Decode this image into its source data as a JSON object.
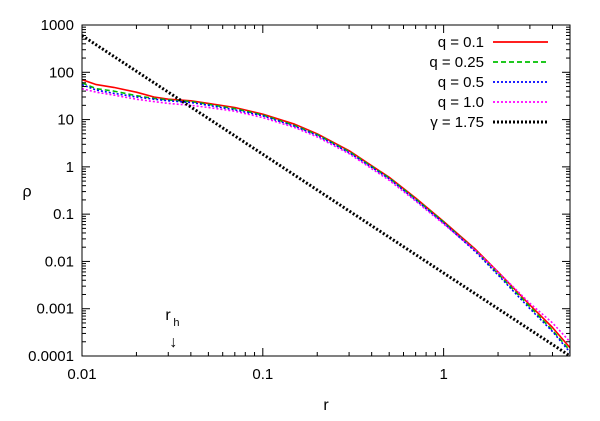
{
  "chart_data": {
    "type": "line",
    "xlabel": "r",
    "ylabel": "ρ",
    "xscale": "log",
    "yscale": "log",
    "xlim": [
      0.01,
      5
    ],
    "ylim": [
      0.0001,
      1000
    ],
    "xticks": [
      {
        "value": 0.01,
        "label": "0.01"
      },
      {
        "value": 0.1,
        "label": "0.1"
      },
      {
        "value": 1,
        "label": "1"
      }
    ],
    "yticks": [
      {
        "value": 0.0001,
        "label": "0.0001"
      },
      {
        "value": 0.001,
        "label": "0.001"
      },
      {
        "value": 0.01,
        "label": "0.01"
      },
      {
        "value": 0.1,
        "label": "0.1"
      },
      {
        "value": 1,
        "label": "1"
      },
      {
        "value": 10,
        "label": "10"
      },
      {
        "value": 100,
        "label": "100"
      },
      {
        "value": 1000,
        "label": "1000"
      }
    ],
    "legend_position": "top-right",
    "grid": false,
    "series": [
      {
        "name": "q = 0.1",
        "color": "#ff0000",
        "dash": "solid",
        "x": [
          0.01,
          0.012,
          0.015,
          0.02,
          0.025,
          0.03,
          0.04,
          0.05,
          0.07,
          0.1,
          0.15,
          0.2,
          0.3,
          0.5,
          0.7,
          1,
          1.5,
          2,
          3,
          4,
          5
        ],
        "y": [
          70,
          55,
          48,
          38,
          30,
          27,
          25,
          22,
          18,
          13,
          8,
          5,
          2.2,
          0.6,
          0.22,
          0.07,
          0.018,
          0.006,
          0.0012,
          0.0004,
          0.00015
        ]
      },
      {
        "name": "q = 0.25",
        "color": "#00c000",
        "dash": "dashed",
        "x": [
          0.01,
          0.012,
          0.015,
          0.02,
          0.025,
          0.03,
          0.04,
          0.05,
          0.07,
          0.1,
          0.15,
          0.2,
          0.3,
          0.5,
          0.7,
          1,
          1.5,
          2,
          3,
          4,
          5
        ],
        "y": [
          60,
          45,
          40,
          32,
          28,
          26,
          24,
          21,
          17,
          12.5,
          7.5,
          4.8,
          2.1,
          0.58,
          0.21,
          0.068,
          0.017,
          0.0055,
          0.0011,
          0.00035,
          0.00013
        ]
      },
      {
        "name": "q = 0.5",
        "color": "#0000ff",
        "dash": "dotted",
        "x": [
          0.01,
          0.012,
          0.015,
          0.02,
          0.025,
          0.03,
          0.04,
          0.05,
          0.07,
          0.1,
          0.15,
          0.2,
          0.3,
          0.5,
          0.7,
          1,
          1.5,
          2,
          3,
          4,
          5
        ],
        "y": [
          55,
          42,
          36,
          30,
          27,
          25,
          23,
          20,
          16,
          12,
          7.2,
          4.6,
          2,
          0.56,
          0.2,
          0.065,
          0.016,
          0.0052,
          0.001,
          0.00033,
          0.00012
        ]
      },
      {
        "name": "q = 1.0",
        "color": "#ff00ff",
        "dash": "dotted",
        "x": [
          0.01,
          0.012,
          0.015,
          0.02,
          0.025,
          0.03,
          0.04,
          0.05,
          0.07,
          0.1,
          0.15,
          0.2,
          0.3,
          0.5,
          0.7,
          1,
          1.5,
          2,
          3,
          4,
          5
        ],
        "y": [
          45,
          38,
          33,
          27,
          24,
          22,
          20,
          18,
          15,
          11,
          6.8,
          4.3,
          1.9,
          0.52,
          0.19,
          0.062,
          0.017,
          0.006,
          0.0013,
          0.0005,
          0.0002
        ]
      },
      {
        "name": "γ = 1.75",
        "color": "#000000",
        "dash": "dotted",
        "x": [
          0.01,
          5
        ],
        "y": [
          600,
          0.0001
        ]
      }
    ],
    "annotations": [
      {
        "label": "r",
        "subscript": "h",
        "arrow": "↓",
        "x": 0.032
      }
    ]
  }
}
